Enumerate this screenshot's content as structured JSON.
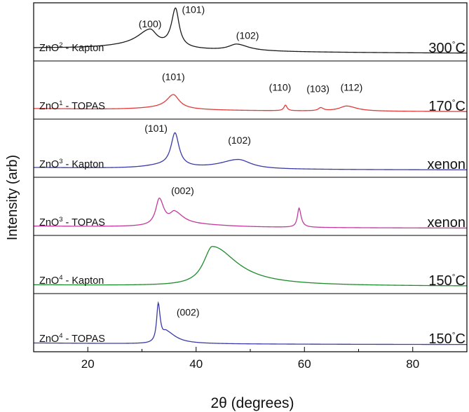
{
  "chart_data": {
    "type": "line",
    "title": "",
    "xlabel": "2θ (degrees)",
    "ylabel": "Intensity (arb)",
    "xlim": [
      10,
      90
    ],
    "x_ticks": [
      20,
      40,
      60,
      80
    ],
    "x_tick_labels": [
      "20",
      "40",
      "60",
      "80"
    ],
    "y_ticks_shown": false,
    "grid": false,
    "legend": "none",
    "layout": "stacked panels (waterfall), one trace per panel",
    "series": [
      {
        "sample": "ZnO2 - Kapton",
        "sample_base": "ZnO",
        "sample_sup": "2",
        "sample_suffix": " - Kapton",
        "condition": "300",
        "condition_unit": "°C",
        "color": "#1a1a1a",
        "baseline": 0.12,
        "peaks": [
          {
            "x": 31.5,
            "h": 0.38,
            "wl": 2.8,
            "wr": 1.5
          },
          {
            "x": 36.2,
            "h": 0.9,
            "wl": 0.9,
            "wr": 0.8
          },
          {
            "x": 47.5,
            "h": 0.15,
            "wl": 1.8,
            "wr": 2.6
          },
          {
            "x": 30.0,
            "h": 0.1,
            "wl": 10,
            "wr": 10
          }
        ],
        "annotations": [
          {
            "text": "(100)",
            "x": 31.5,
            "y": 0.62
          },
          {
            "text": "(101)",
            "x": 39.5,
            "y": 0.96
          },
          {
            "text": "(102)",
            "x": 49.5,
            "y": 0.35
          }
        ]
      },
      {
        "sample": "ZnO1 - TOPAS",
        "sample_base": "ZnO",
        "sample_sup": "1",
        "sample_suffix": " - TOPAS",
        "condition": "170",
        "condition_unit": "°C",
        "color": "#e23a3a",
        "baseline": 0.08,
        "peaks": [
          {
            "x": 35.8,
            "h": 0.32,
            "wl": 1.5,
            "wr": 1.3
          },
          {
            "x": 56.5,
            "h": 0.13,
            "wl": 0.35,
            "wr": 0.35
          },
          {
            "x": 63.0,
            "h": 0.07,
            "wl": 0.5,
            "wr": 0.6
          },
          {
            "x": 67.8,
            "h": 0.12,
            "wl": 1.6,
            "wr": 2.2
          },
          {
            "x": 34.0,
            "h": 0.05,
            "wl": 6,
            "wr": 6
          }
        ],
        "annotations": [
          {
            "text": "(101)",
            "x": 35.8,
            "y": 0.75
          },
          {
            "text": "(110)",
            "x": 55.5,
            "y": 0.5
          },
          {
            "text": "(103)",
            "x": 62.5,
            "y": 0.47
          },
          {
            "text": "(112)",
            "x": 68.7,
            "y": 0.5
          }
        ]
      },
      {
        "sample": "ZnO3 - Kapton",
        "sample_base": "ZnO",
        "sample_sup": "3",
        "sample_suffix": " - Kapton",
        "condition": "xenon",
        "condition_unit": "",
        "color": "#3a3aa8",
        "baseline": 0.06,
        "peaks": [
          {
            "x": 36.1,
            "h": 0.78,
            "wl": 0.9,
            "wr": 0.9
          },
          {
            "x": 47.8,
            "h": 0.22,
            "wl": 4.0,
            "wr": 2.8
          },
          {
            "x": 33.5,
            "h": 0.06,
            "wl": 4,
            "wr": 4
          }
        ],
        "annotations": [
          {
            "text": "(101)",
            "x": 32.6,
            "y": 0.9
          },
          {
            "text": "(102)",
            "x": 48.0,
            "y": 0.62
          }
        ]
      },
      {
        "sample": "ZnO3 - TOPAS",
        "sample_base": "ZnO",
        "sample_sup": "3",
        "sample_suffix": " - TOPAS",
        "condition": "xenon",
        "condition_unit": "",
        "color": "#c2399c",
        "baseline": 0.05,
        "peaks": [
          {
            "x": 33.2,
            "h": 0.62,
            "wl": 0.8,
            "wr": 1.0
          },
          {
            "x": 36.0,
            "h": 0.28,
            "wl": 1.0,
            "wr": 2.0
          },
          {
            "x": 59.0,
            "h": 0.45,
            "wl": 0.35,
            "wr": 0.45
          },
          {
            "x": 40.0,
            "h": 0.05,
            "wl": 8,
            "wr": 8
          }
        ],
        "annotations": [
          {
            "text": "(002)",
            "x": 37.5,
            "y": 0.8
          }
        ]
      },
      {
        "sample": "ZnO4 - Kapton",
        "sample_base": "ZnO",
        "sample_sup": "4",
        "sample_suffix": " - Kapton",
        "condition": "150",
        "condition_unit": "°C",
        "color": "#1e8c2c",
        "baseline": 0.04,
        "peaks": [
          {
            "x": 43.0,
            "h": 0.92,
            "wl": 2.0,
            "wr": 5.5
          }
        ],
        "annotations": []
      },
      {
        "sample": "ZnO4 - TOPAS",
        "sample_base": "ZnO",
        "sample_sup": "4",
        "sample_suffix": " - TOPAS",
        "condition": "150",
        "condition_unit": "°C",
        "color": "#3a3aa8",
        "baseline": 0.04,
        "peaks": [
          {
            "x": 33.0,
            "h": 0.9,
            "wl": 0.35,
            "wr": 0.45
          },
          {
            "x": 34.5,
            "h": 0.25,
            "wl": 0.8,
            "wr": 2.2
          }
        ],
        "annotations": [
          {
            "text": "(002)",
            "x": 38.5,
            "y": 0.68
          }
        ]
      }
    ]
  }
}
